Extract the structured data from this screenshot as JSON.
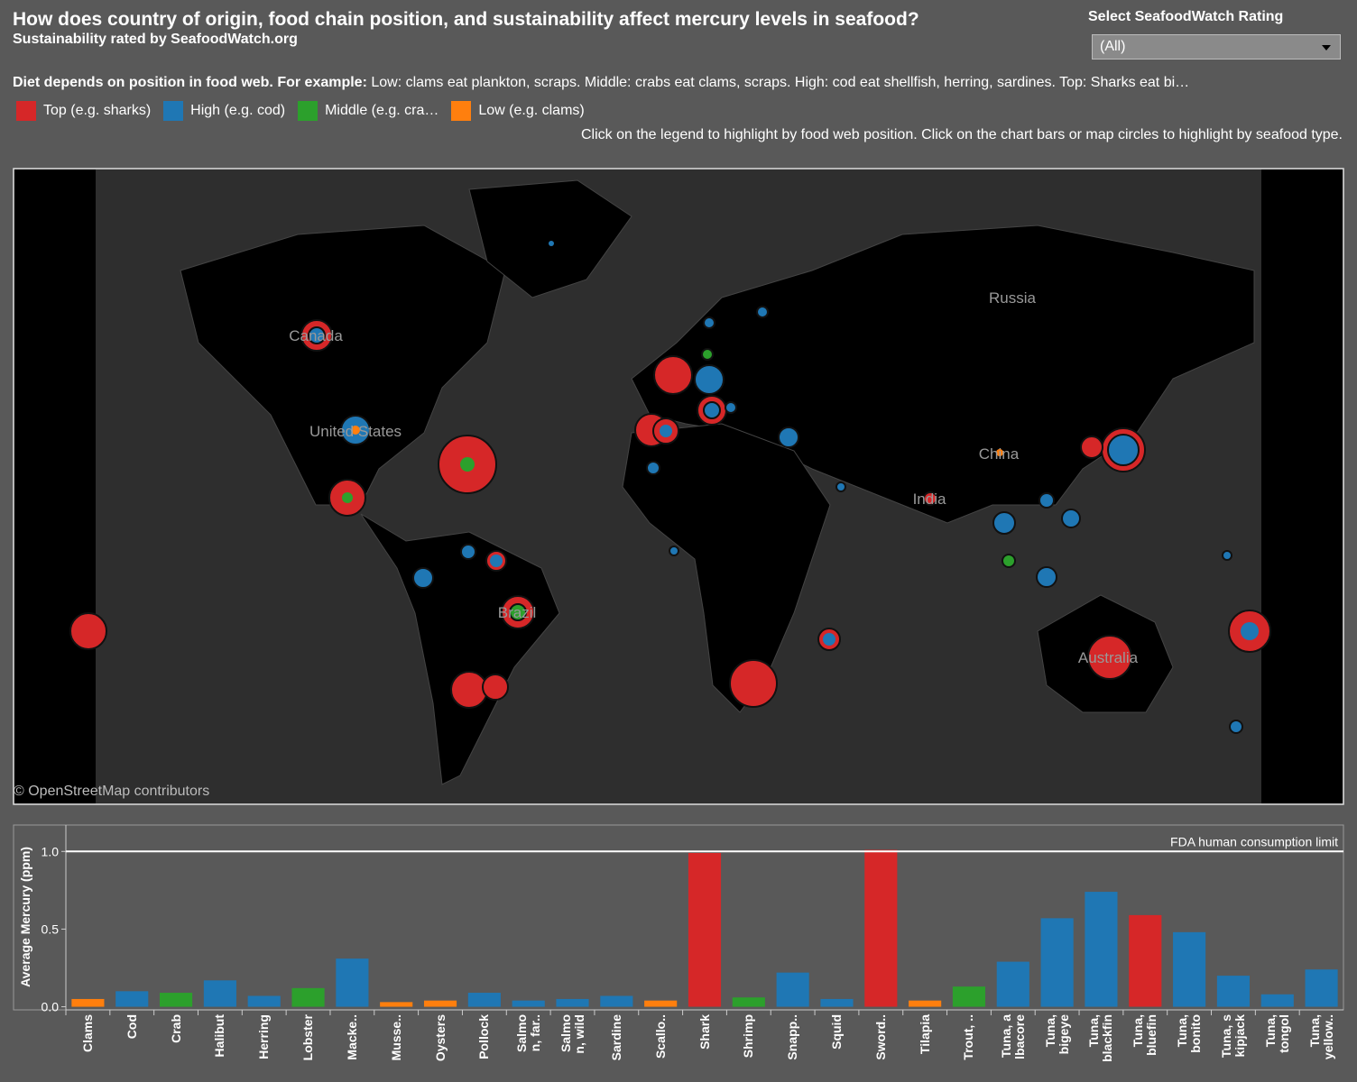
{
  "title": "How does country of origin, food chain position, and sustainability affect mercury levels in seafood?",
  "subtitle": "Sustainability rated by SeafoodWatch.org",
  "filter": {
    "label": "Select SeafoodWatch Rating",
    "value": "(All)"
  },
  "note": {
    "bold": "Diet depends on position in food web. For example:",
    "text": "Low: clams eat plankton, scraps. Middle: crabs eat clams, scraps. High: cod eat shellfish, herring, sardines. Top: Sharks eat bi…"
  },
  "legend": [
    {
      "name": "Top (e.g. sharks)",
      "color": "#d62728"
    },
    {
      "name": "High (e.g. cod)",
      "color": "#1f77b4"
    },
    {
      "name": "Middle (e.g. cra…",
      "color": "#2ca02c"
    },
    {
      "name": "Low (e.g. clams)",
      "color": "#ff7f0e"
    }
  ],
  "instructions": "Click on the legend to highlight by food web position. Click on the chart bars or map circles to highlight by seafood type.",
  "map": {
    "labels": [
      "Canada",
      "United States",
      "Russia",
      "China",
      "India",
      "Brazil",
      "Australia"
    ],
    "attribution": "© OpenStreetMap contributors"
  },
  "chart_data": {
    "type": "bar",
    "ylabel": "Average Mercury (ppm)",
    "categories": [
      "Clams",
      "Cod",
      "Crab",
      "Halibut",
      "Herring",
      "Lobster",
      "Macke..",
      "Musse..",
      "Oysters",
      "Pollock",
      "Salmo\nn, far..",
      "Salmo\nn, wild",
      "Sardine",
      "Scallo..",
      "Shark",
      "Shrimp",
      "Snapp..",
      "Squid",
      "Sword..",
      "Tilapia",
      "Trout, ..",
      "Tuna, a\nlbacore",
      "Tuna,\nbigeye",
      "Tuna,\nblackfin",
      "Tuna,\nbluefin",
      "Tuna,\nbonito",
      "Tuna, s\nkipjack",
      "Tuna,\ntongol",
      "Tuna,\nyellow.."
    ],
    "values": [
      0.05,
      0.1,
      0.09,
      0.17,
      0.07,
      0.12,
      0.31,
      0.03,
      0.04,
      0.09,
      0.04,
      0.05,
      0.07,
      0.04,
      0.99,
      0.06,
      0.22,
      0.05,
      1.01,
      0.04,
      0.13,
      0.29,
      0.57,
      0.74,
      0.59,
      0.48,
      0.2,
      0.08,
      0.24
    ],
    "colors": [
      "#ff7f0e",
      "#1f77b4",
      "#2ca02c",
      "#1f77b4",
      "#1f77b4",
      "#2ca02c",
      "#1f77b4",
      "#ff7f0e",
      "#ff7f0e",
      "#1f77b4",
      "#1f77b4",
      "#1f77b4",
      "#1f77b4",
      "#ff7f0e",
      "#d62728",
      "#2ca02c",
      "#1f77b4",
      "#1f77b4",
      "#d62728",
      "#ff7f0e",
      "#2ca02c",
      "#1f77b4",
      "#1f77b4",
      "#1f77b4",
      "#d62728",
      "#1f77b4",
      "#1f77b4",
      "#1f77b4",
      "#1f77b4"
    ],
    "ylim": [
      -0.02,
      1.17
    ],
    "yticks": [
      {
        "value": 0,
        "label": "0.0"
      },
      {
        "value": 0.5,
        "label": "0.5"
      },
      {
        "value": 1,
        "label": "1.0"
      }
    ],
    "reference_line": {
      "value": 1,
      "label": "FDA human consumption limit"
    },
    "grid": false
  }
}
